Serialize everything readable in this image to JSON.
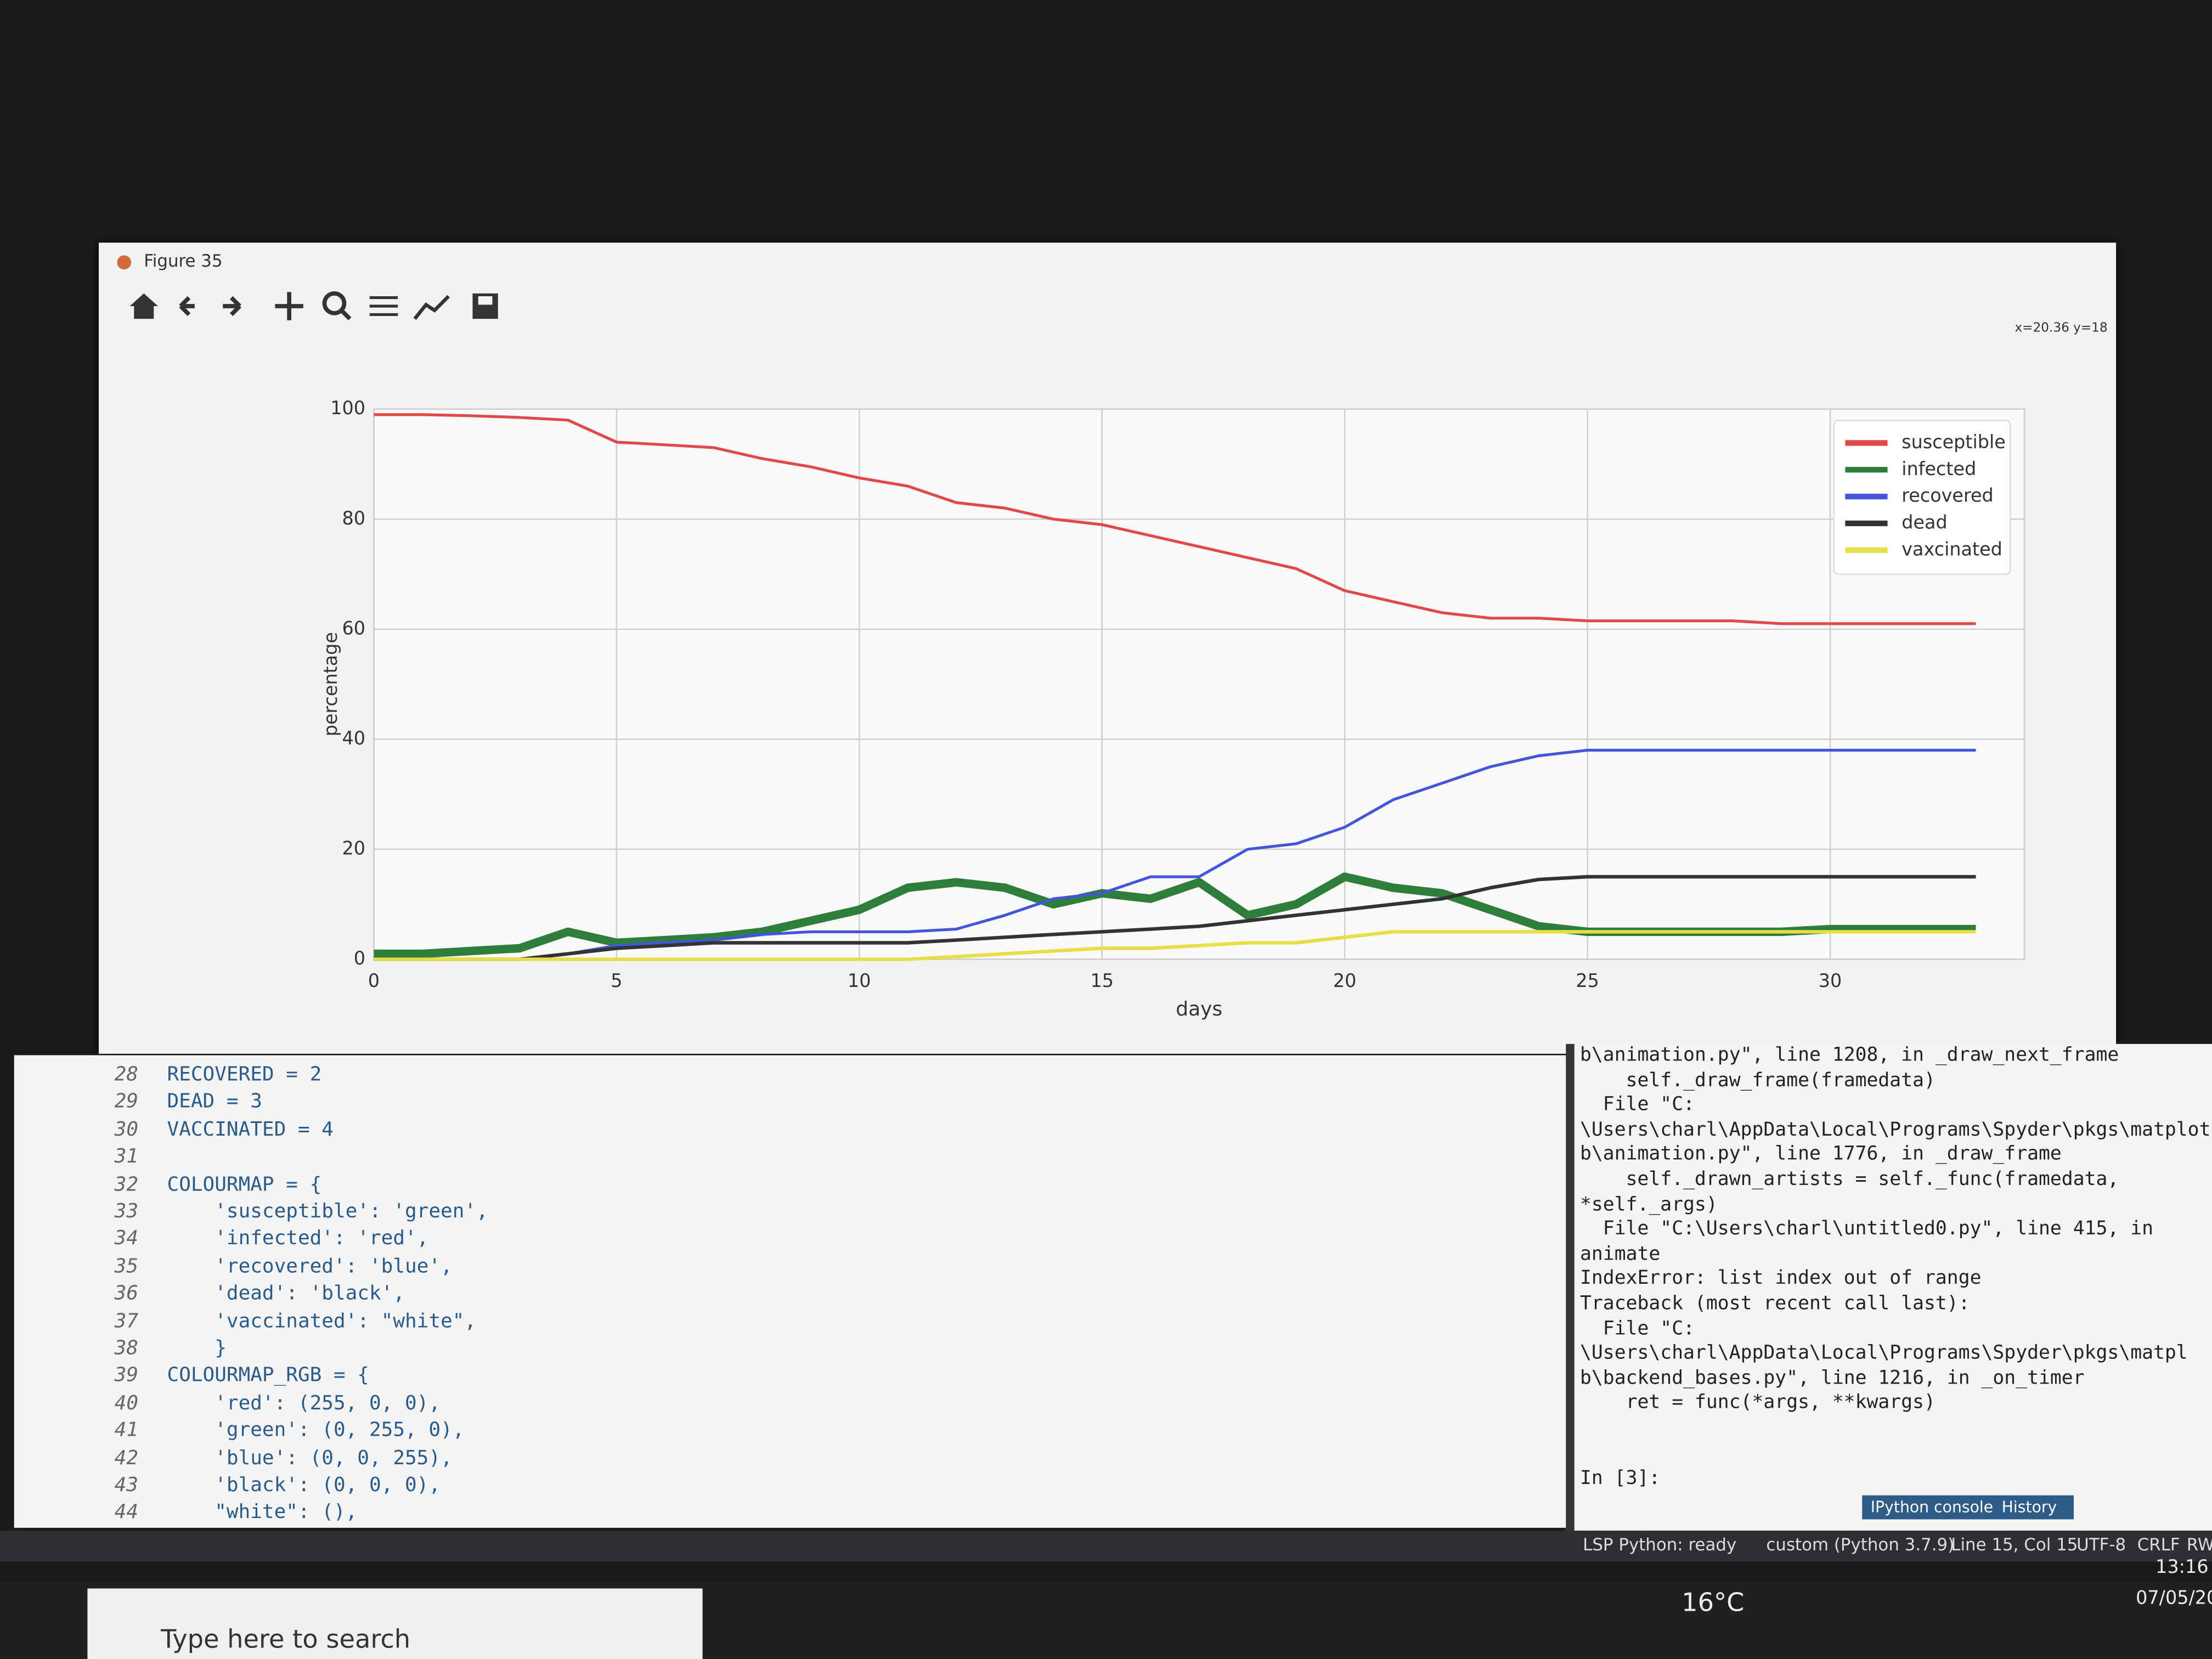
{
  "window": {
    "title": "Figure 35",
    "coords": "x=20.36 y=18"
  },
  "chart_data": {
    "type": "line",
    "xlabel": "days",
    "ylabel": "percentage",
    "x": [
      0,
      1,
      2,
      3,
      4,
      5,
      6,
      7,
      8,
      9,
      10,
      11,
      12,
      13,
      14,
      15,
      16,
      17,
      18,
      19,
      20,
      21,
      22,
      23,
      24,
      25,
      26,
      27,
      28,
      29,
      30,
      31,
      32,
      33
    ],
    "xlim": [
      0,
      34
    ],
    "xticks": [
      0,
      5,
      10,
      15,
      20,
      25,
      30
    ],
    "ylim": [
      0,
      100
    ],
    "yticks": [
      0,
      20,
      40,
      60,
      80,
      100
    ],
    "grid": true,
    "legend": "upper right",
    "series": [
      {
        "name": "susceptible",
        "color": "#e0484a",
        "width": 2,
        "values": [
          99,
          99,
          98.8,
          98.5,
          98,
          94,
          93.5,
          93,
          91,
          89.5,
          87.5,
          86,
          83,
          82,
          80,
          79,
          77,
          75,
          73,
          71,
          67,
          65,
          63,
          62,
          62,
          61.5,
          61.5,
          61.5,
          61.5,
          61,
          61,
          61,
          61,
          61
        ]
      },
      {
        "name": "infected",
        "color": "#2f7d3a",
        "width": 6,
        "values": [
          1,
          1,
          1.5,
          2,
          5,
          3,
          3.5,
          4,
          5,
          7,
          9,
          13,
          14,
          13,
          10,
          12,
          11,
          14,
          8,
          10,
          15,
          13,
          12,
          9,
          6,
          5,
          5,
          5,
          5,
          5,
          5.5,
          5.5,
          5.5,
          5.5
        ]
      },
      {
        "name": "recovered",
        "color": "#4455dd",
        "width": 2,
        "values": [
          0,
          0,
          0,
          0,
          1,
          2.5,
          3,
          3.5,
          4.5,
          5,
          5,
          5,
          5.5,
          8,
          11,
          12,
          15,
          15,
          20,
          21,
          24,
          29,
          32,
          35,
          37,
          38,
          38,
          38,
          38,
          38,
          38,
          38,
          38,
          38
        ]
      },
      {
        "name": "dead",
        "color": "#333333",
        "width": 2.5,
        "values": [
          0,
          0,
          0,
          0,
          1,
          2,
          2.5,
          3,
          3,
          3,
          3,
          3,
          3.5,
          4,
          4.5,
          5,
          5.5,
          6,
          7,
          8,
          9,
          10,
          11,
          13,
          14.5,
          15,
          15,
          15,
          15,
          15,
          15,
          15,
          15,
          15
        ]
      },
      {
        "name": "vaxcinated",
        "color": "#e6df4a",
        "width": 2.5,
        "values": [
          0,
          0,
          0,
          0,
          0,
          0,
          0,
          0,
          0,
          0,
          0,
          0,
          0.5,
          1,
          1.5,
          2,
          2,
          2.5,
          3,
          3,
          4,
          5,
          5,
          5,
          5,
          5,
          5,
          5,
          5,
          5,
          5,
          5,
          5,
          5
        ]
      }
    ]
  },
  "editor": {
    "lines": [
      {
        "n": 28,
        "text": " RECOVERED = 2"
      },
      {
        "n": 29,
        "text": " DEAD = 3"
      },
      {
        "n": 30,
        "text": " VACCINATED = 4"
      },
      {
        "n": 31
      },
      {
        "n": 32,
        "text": " COLOURMAP = {"
      },
      {
        "n": 33,
        "text": "     'susceptible': 'green',"
      },
      {
        "n": 34,
        "text": "     'infected': 'red',"
      },
      {
        "n": 35,
        "text": "     'recovered': 'blue',"
      },
      {
        "n": 36,
        "text": "     'dead': 'black',"
      },
      {
        "n": 37,
        "text": "     'vaccinated': \"white\","
      },
      {
        "n": 38,
        "text": "     }"
      },
      {
        "n": 39,
        "text": " COLOURMAP_RGB = {"
      },
      {
        "n": 40,
        "text": "     'red': (255, 0, 0),"
      },
      {
        "n": 41,
        "text": "     'green': (0, 255, 0),"
      },
      {
        "n": 42,
        "text": "     'blue': (0, 0, 255),"
      },
      {
        "n": 43,
        "text": "     'black': (0, 0, 0),"
      },
      {
        "n": 44,
        "text": "     \"white\": (),"
      }
    ]
  },
  "console": {
    "lines": [
      "b\\animation.py\", line 1208, in _draw_next_frame",
      "    self._draw_frame(framedata)",
      "  File \"C:",
      "\\Users\\charl\\AppData\\Local\\Programs\\Spyder\\pkgs\\matplotl",
      "b\\animation.py\", line 1776, in _draw_frame",
      "    self._drawn_artists = self._func(framedata,",
      "*self._args)",
      "  File \"C:\\Users\\charl\\untitled0.py\", line 415, in",
      "animate",
      "IndexError: list index out of range",
      "Traceback (most recent call last):",
      "  File \"C:",
      "\\Users\\charl\\AppData\\Local\\Programs\\Spyder\\pkgs\\matpl",
      "b\\backend_bases.py\", line 1216, in _on_timer",
      "    ret = func(*args, **kwargs)"
    ],
    "prompt": "In [3]:",
    "tabs": [
      "IPython console",
      "History"
    ]
  },
  "status_bar": [
    "LSP Python: ready",
    "custom (Python 3.7.9)",
    "Line 15, Col 15",
    "UTF-8",
    "CRLF",
    "RW"
  ],
  "taskbar": {
    "search": "Type here to search",
    "temperature": "16°C",
    "time": "13:16",
    "date": "07/05/20"
  }
}
